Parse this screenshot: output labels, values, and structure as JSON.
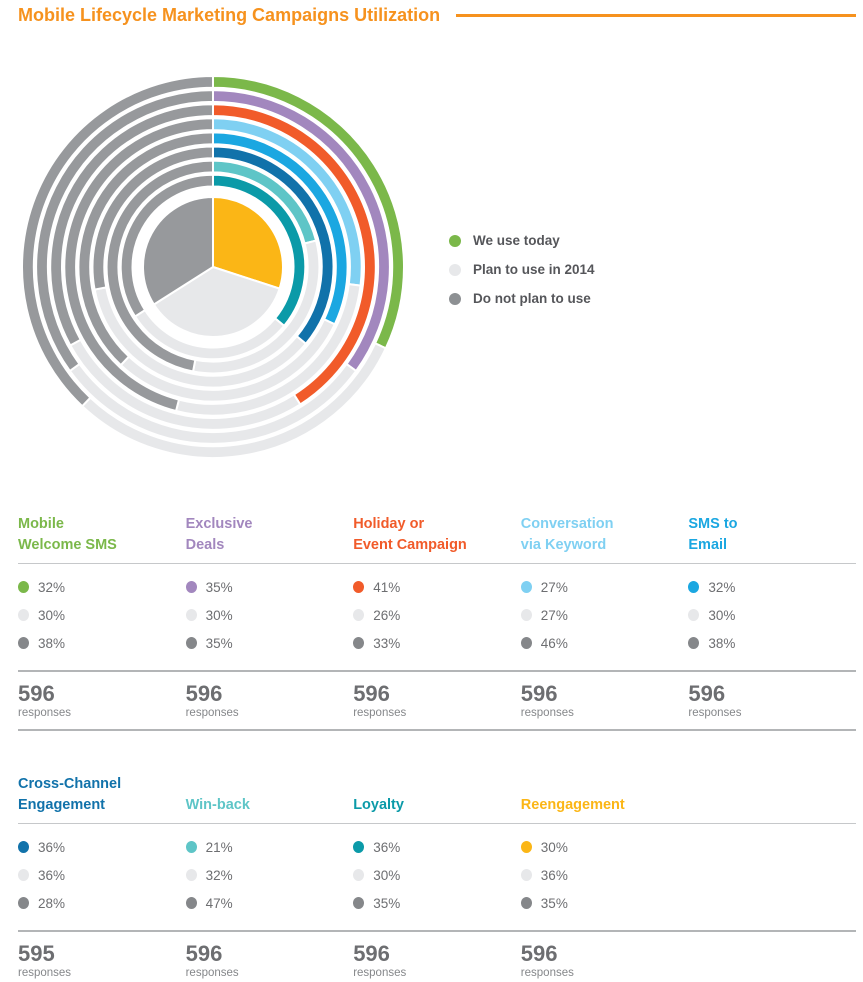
{
  "title": "Mobile Lifecycle Marketing Campaigns Utilization",
  "accent_color": "#f6921e",
  "labels": {
    "responses": "responses"
  },
  "legend": {
    "items": [
      {
        "label": "We use today",
        "color": "#7bb84a"
      },
      {
        "label": "Plan to use in 2014",
        "color": "#e7e8ea"
      },
      {
        "label": "Do not plan to use",
        "color": "#8d9093"
      }
    ]
  },
  "chart_data": {
    "type": "pie",
    "variant": "concentric_rings_donut",
    "start_angle": "12 o'clock, clockwise",
    "series_labels": [
      "We use today",
      "Plan to use in 2014",
      "Do not plan to use"
    ],
    "plan_color": "#e7e8ea",
    "do_not_plan_color": "#97999c",
    "rings_outer_to_inner": [
      {
        "label": "Mobile Welcome SMS",
        "color": "#7bb84a",
        "use_today_pct": 32,
        "plan_2014_pct": 30,
        "do_not_plan_pct": 38
      },
      {
        "label": "Exclusive Deals",
        "color": "#a287be",
        "use_today_pct": 35,
        "plan_2014_pct": 30,
        "do_not_plan_pct": 35
      },
      {
        "label": "Holiday or Event Campaign",
        "color": "#f15b2a",
        "use_today_pct": 41,
        "plan_2014_pct": 26,
        "do_not_plan_pct": 33
      },
      {
        "label": "Conversation via Keyword",
        "color": "#7fd0f2",
        "use_today_pct": 27,
        "plan_2014_pct": 27,
        "do_not_plan_pct": 46
      },
      {
        "label": "SMS to Email",
        "color": "#1ba7e1",
        "use_today_pct": 32,
        "plan_2014_pct": 30,
        "do_not_plan_pct": 38
      },
      {
        "label": "Cross-Channel Engagement",
        "color": "#1172aa",
        "use_today_pct": 36,
        "plan_2014_pct": 36,
        "do_not_plan_pct": 28
      },
      {
        "label": "Win-back",
        "color": "#5ec5c7",
        "use_today_pct": 21,
        "plan_2014_pct": 32,
        "do_not_plan_pct": 47
      },
      {
        "label": "Loyalty",
        "color": "#0b9aa8",
        "use_today_pct": 36,
        "plan_2014_pct": 30,
        "do_not_plan_pct": 35
      },
      {
        "label": "Reengagement",
        "color": "#fbb616",
        "use_today_pct": 30,
        "plan_2014_pct": 36,
        "do_not_plan_pct": 35
      }
    ]
  },
  "tables": [
    {
      "columns": [
        {
          "title_lines": [
            "Mobile",
            "Welcome SMS"
          ],
          "color": "#7bb84a",
          "rows": [
            {
              "pct": "32%",
              "dot_color": "#7bb84a"
            },
            {
              "pct": "30%",
              "dot_color": "#e7e8ea"
            },
            {
              "pct": "38%",
              "dot_color": "#85878a"
            }
          ],
          "responses": "596"
        },
        {
          "title_lines": [
            "Exclusive",
            "Deals"
          ],
          "color": "#a287be",
          "rows": [
            {
              "pct": "35%",
              "dot_color": "#a287be"
            },
            {
              "pct": "30%",
              "dot_color": "#e7e8ea"
            },
            {
              "pct": "35%",
              "dot_color": "#85878a"
            }
          ],
          "responses": "596"
        },
        {
          "title_lines": [
            "Holiday or",
            "Event Campaign"
          ],
          "color": "#f15b2a",
          "rows": [
            {
              "pct": "41%",
              "dot_color": "#f15b2a"
            },
            {
              "pct": "26%",
              "dot_color": "#e7e8ea"
            },
            {
              "pct": "33%",
              "dot_color": "#85878a"
            }
          ],
          "responses": "596"
        },
        {
          "title_lines": [
            "Conversation",
            "via Keyword"
          ],
          "color": "#7fd0f2",
          "rows": [
            {
              "pct": "27%",
              "dot_color": "#7fd0f2"
            },
            {
              "pct": "27%",
              "dot_color": "#e7e8ea"
            },
            {
              "pct": "46%",
              "dot_color": "#85878a"
            }
          ],
          "responses": "596"
        },
        {
          "title_lines": [
            "SMS to",
            "Email"
          ],
          "color": "#1ba7e1",
          "rows": [
            {
              "pct": "32%",
              "dot_color": "#1ba7e1"
            },
            {
              "pct": "30%",
              "dot_color": "#e7e8ea"
            },
            {
              "pct": "38%",
              "dot_color": "#85878a"
            }
          ],
          "responses": "596"
        }
      ]
    },
    {
      "columns": [
        {
          "title_lines": [
            "Cross-Channel",
            "Engagement"
          ],
          "color": "#1172aa",
          "rows": [
            {
              "pct": "36%",
              "dot_color": "#1172aa"
            },
            {
              "pct": "36%",
              "dot_color": "#e7e8ea"
            },
            {
              "pct": "28%",
              "dot_color": "#85878a"
            }
          ],
          "responses": "595"
        },
        {
          "title_lines": [
            "Win-back"
          ],
          "color": "#5ec5c7",
          "rows": [
            {
              "pct": "21%",
              "dot_color": "#5ec5c7"
            },
            {
              "pct": "32%",
              "dot_color": "#e7e8ea"
            },
            {
              "pct": "47%",
              "dot_color": "#85878a"
            }
          ],
          "responses": "596"
        },
        {
          "title_lines": [
            "Loyalty"
          ],
          "color": "#0b9aa8",
          "rows": [
            {
              "pct": "36%",
              "dot_color": "#0b9aa8"
            },
            {
              "pct": "30%",
              "dot_color": "#e7e8ea"
            },
            {
              "pct": "35%",
              "dot_color": "#85878a"
            }
          ],
          "responses": "596"
        },
        {
          "title_lines": [
            "Reengagement"
          ],
          "color": "#fbb616",
          "rows": [
            {
              "pct": "30%",
              "dot_color": "#fbb616"
            },
            {
              "pct": "36%",
              "dot_color": "#e7e8ea"
            },
            {
              "pct": "35%",
              "dot_color": "#85878a"
            }
          ],
          "responses": "596"
        }
      ]
    }
  ]
}
